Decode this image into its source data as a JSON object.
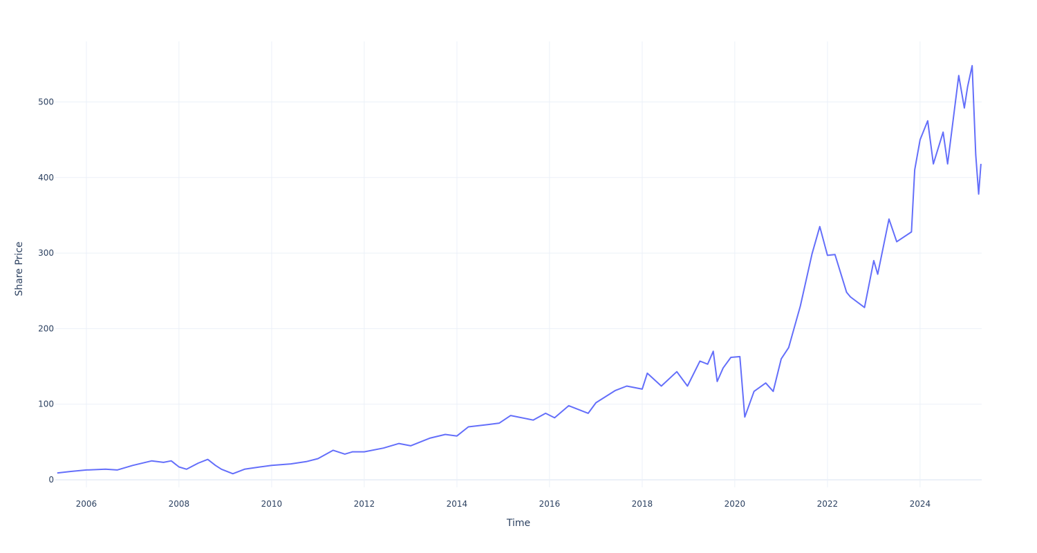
{
  "chart_data": {
    "type": "line",
    "title": "",
    "xlabel": "Time",
    "ylabel": "Share Price",
    "xlim": [
      "2005-05-01",
      "2025-05-01"
    ],
    "ylim": [
      -10,
      580
    ],
    "x_ticks": [
      "2006",
      "2008",
      "2010",
      "2012",
      "2014",
      "2016",
      "2018",
      "2020",
      "2022",
      "2024"
    ],
    "y_ticks": [
      0,
      100,
      200,
      300,
      400,
      500
    ],
    "grid": true,
    "legend": "none",
    "line_color": "#636efa",
    "series": [
      {
        "x": [
          "2005-05-16",
          "2005-09-01",
          "2006-01-01",
          "2006-06-01",
          "2006-09-01",
          "2007-01-01",
          "2007-06-01",
          "2007-09-01",
          "2007-11-01",
          "2008-01-01",
          "2008-03-01",
          "2008-06-01",
          "2008-08-15",
          "2008-10-15",
          "2008-12-01",
          "2009-03-01",
          "2009-06-01",
          "2009-10-01",
          "2010-01-01",
          "2010-06-01",
          "2010-10-01",
          "2011-01-01",
          "2011-05-01",
          "2011-08-01",
          "2011-10-01",
          "2012-01-01",
          "2012-06-01",
          "2012-10-01",
          "2013-01-01",
          "2013-06-01",
          "2013-10-01",
          "2014-01-01",
          "2014-04-01",
          "2014-09-01",
          "2014-12-01",
          "2015-03-01",
          "2015-08-25",
          "2015-12-01",
          "2016-02-10",
          "2016-06-01",
          "2016-11-01",
          "2017-01-01",
          "2017-06-01",
          "2017-09-01",
          "2018-01-01",
          "2018-02-10",
          "2018-06-01",
          "2018-10-01",
          "2018-12-24",
          "2019-04-01",
          "2019-06-01",
          "2019-07-15",
          "2019-08-15",
          "2019-10-01",
          "2019-12-01",
          "2020-02-10",
          "2020-03-20",
          "2020-06-01",
          "2020-09-01",
          "2020-10-30",
          "2021-01-01",
          "2021-03-01",
          "2021-06-01",
          "2021-09-01",
          "2021-11-01",
          "2022-01-01",
          "2022-03-01",
          "2022-06-01",
          "2022-07-01",
          "2022-10-20",
          "2023-01-01",
          "2023-02-01",
          "2023-05-01",
          "2023-07-01",
          "2023-10-25",
          "2023-11-20",
          "2024-01-01",
          "2024-03-01",
          "2024-04-15",
          "2024-07-01",
          "2024-08-05",
          "2024-11-01",
          "2024-12-15",
          "2025-01-10",
          "2025-02-15",
          "2025-03-15",
          "2025-04-07",
          "2025-04-25"
        ],
        "y": [
          9,
          11,
          13,
          14,
          13,
          19,
          25,
          23,
          25,
          17,
          14,
          22,
          27,
          19,
          14,
          8,
          14,
          17,
          19,
          21,
          24,
          28,
          39,
          34,
          37,
          37,
          42,
          48,
          45,
          55,
          60,
          58,
          70,
          73,
          75,
          85,
          79,
          88,
          82,
          98,
          88,
          102,
          118,
          124,
          120,
          141,
          124,
          143,
          124,
          157,
          153,
          170,
          130,
          148,
          162,
          163,
          83,
          117,
          128,
          117,
          160,
          175,
          230,
          299,
          335,
          297,
          298,
          248,
          242,
          228,
          290,
          272,
          345,
          315,
          328,
          410,
          450,
          475,
          418,
          460,
          418,
          535,
          492,
          520,
          548,
          430,
          378,
          418
        ]
      }
    ]
  }
}
